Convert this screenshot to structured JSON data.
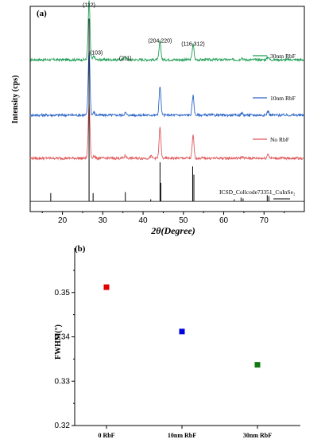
{
  "colors": {
    "series_30nm": "#1f9e55",
    "series_10nm": "#2e66c8",
    "series_no": "#e0595c",
    "series_icsd": "#000000",
    "fwhm_0": "#e00000",
    "fwhm_10": "#0000e0",
    "fwhm_30": "#107a10"
  },
  "chart_data": [
    {
      "type": "line",
      "panel_label": "(a)",
      "xlabel": "2θ(Degree)",
      "ylabel": "Intensity (cps)",
      "xlim": [
        12,
        80
      ],
      "xticks": [
        20,
        30,
        40,
        50,
        60,
        70
      ],
      "grid": false,
      "legend_position": "right, next to each trace",
      "peak_labels": [
        {
          "text": "(112)",
          "x": 26.6
        },
        {
          "text": "(103)",
          "x": 27.6
        },
        {
          "text": "(211)",
          "x": 35.6
        },
        {
          "text": "(204,220)",
          "x": 44.2
        },
        {
          "text": "(116,312)",
          "x": 52.4
        }
      ],
      "series": [
        {
          "name": "30nm RbF",
          "baseline": 0.74,
          "peaks": [
            {
              "x": 26.6,
              "h": 0.29
            },
            {
              "x": 27.8,
              "h": 0.018
            },
            {
              "x": 35.6,
              "h": 0.018
            },
            {
              "x": 44.2,
              "h": 0.09
            },
            {
              "x": 52.4,
              "h": 0.075
            },
            {
              "x": 64.5,
              "h": 0.01
            },
            {
              "x": 71.0,
              "h": 0.014
            }
          ]
        },
        {
          "name": "10nm RbF",
          "baseline": 0.47,
          "peaks": [
            {
              "x": 26.6,
              "h": 0.32
            },
            {
              "x": 27.8,
              "h": 0.014
            },
            {
              "x": 35.6,
              "h": 0.012
            },
            {
              "x": 44.2,
              "h": 0.14
            },
            {
              "x": 52.4,
              "h": 0.095
            },
            {
              "x": 64.5,
              "h": 0.01
            },
            {
              "x": 71.0,
              "h": 0.02
            }
          ]
        },
        {
          "name": "No RbF",
          "baseline": 0.26,
          "peaks": [
            {
              "x": 26.6,
              "h": 0.26
            },
            {
              "x": 27.8,
              "h": 0.012
            },
            {
              "x": 35.6,
              "h": 0.012
            },
            {
              "x": 42.0,
              "h": 0.01
            },
            {
              "x": 44.2,
              "h": 0.15
            },
            {
              "x": 52.4,
              "h": 0.11
            },
            {
              "x": 64.5,
              "h": 0.008
            },
            {
              "x": 71.0,
              "h": 0.022
            }
          ]
        },
        {
          "name": "ICSD_Collcode73351_CuInSe₂",
          "baseline": 0.05,
          "sticks": [
            {
              "x": 17.1,
              "h": 0.04
            },
            {
              "x": 26.6,
              "h": 0.89
            },
            {
              "x": 27.6,
              "h": 0.04
            },
            {
              "x": 35.6,
              "h": 0.045
            },
            {
              "x": 41.9,
              "h": 0.01
            },
            {
              "x": 44.2,
              "h": 0.19
            },
            {
              "x": 44.4,
              "h": 0.09
            },
            {
              "x": 52.3,
              "h": 0.17
            },
            {
              "x": 52.6,
              "h": 0.13
            },
            {
              "x": 62.6,
              "h": 0.01
            },
            {
              "x": 64.3,
              "h": 0.018
            },
            {
              "x": 64.8,
              "h": 0.014
            },
            {
              "x": 70.8,
              "h": 0.03
            },
            {
              "x": 71.2,
              "h": 0.025
            }
          ]
        }
      ]
    },
    {
      "type": "scatter",
      "panel_label": "(b)",
      "ylabel": "FWHM(°)",
      "xlabel": "",
      "categories": [
        "0 RbF",
        "10nm RbF",
        "30nm RbF"
      ],
      "values": [
        0.3512,
        0.3412,
        0.3337
      ],
      "ylim": [
        0.32,
        0.36
      ],
      "yticks": [
        0.32,
        0.33,
        0.34,
        0.35
      ],
      "grid": false
    }
  ]
}
